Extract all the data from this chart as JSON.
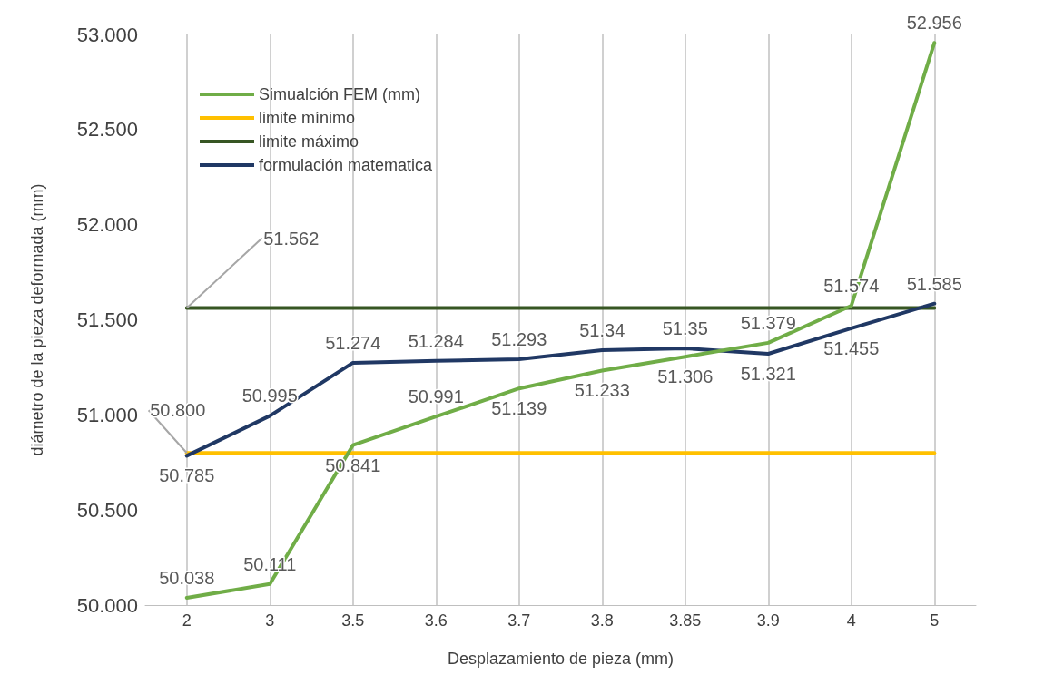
{
  "chart_data": {
    "type": "line",
    "xlabel": "Desplazamiento de pieza (mm)",
    "ylabel": "diámetro de la pieza deformada (mm)",
    "categories": [
      "2",
      "3",
      "3.5",
      "3.6",
      "3.7",
      "3.8",
      "3.85",
      "3.9",
      "4",
      "5"
    ],
    "series": [
      {
        "name": "Simualción FEM (mm)",
        "color": "#70ad47",
        "values": [
          50.038,
          50.111,
          50.841,
          50.991,
          51.139,
          51.233,
          51.306,
          51.379,
          51.574,
          52.956
        ],
        "value_labels": [
          "50.038",
          "50.111",
          "50.841",
          "50.991",
          "51.139",
          "51.233",
          "51.306",
          "51.379",
          "51.574",
          "52.956"
        ]
      },
      {
        "name": "limite mínimo",
        "color": "#ffc000",
        "values": [
          50.8,
          50.8,
          50.8,
          50.8,
          50.8,
          50.8,
          50.8,
          50.8,
          50.8,
          50.8
        ],
        "value_labels": [
          "50.800",
          null,
          null,
          null,
          null,
          null,
          null,
          null,
          null,
          null
        ]
      },
      {
        "name": "limite máximo",
        "color": "#375623",
        "values": [
          51.562,
          51.562,
          51.562,
          51.562,
          51.562,
          51.562,
          51.562,
          51.562,
          51.562,
          51.562
        ],
        "value_labels": [
          "51.562",
          null,
          null,
          null,
          null,
          null,
          null,
          null,
          null,
          null
        ]
      },
      {
        "name": "formulación matematica",
        "color": "#203864",
        "values": [
          50.785,
          50.995,
          51.274,
          51.284,
          51.293,
          51.34,
          51.35,
          51.321,
          51.455,
          51.585
        ],
        "value_labels": [
          "50.785",
          "50.995",
          "51.274",
          "51.284",
          "51.293",
          "51.34",
          "51.35",
          "51.321",
          "51.455",
          "51.585"
        ]
      }
    ],
    "ylim": [
      50,
      53
    ],
    "yticks": [
      {
        "value": 50,
        "label": "50.000"
      },
      {
        "value": 50.5,
        "label": "50.500"
      },
      {
        "value": 51,
        "label": "51.000"
      },
      {
        "value": 51.5,
        "label": "51.500"
      },
      {
        "value": 52,
        "label": "52.000"
      },
      {
        "value": 52.5,
        "label": "52.500"
      },
      {
        "value": 53,
        "label": "53.000"
      }
    ],
    "grid": "x",
    "legend": "top left",
    "marker": "none",
    "line_style": "solid"
  }
}
